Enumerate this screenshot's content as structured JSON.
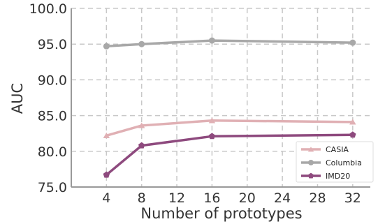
{
  "chart_data": {
    "type": "line",
    "title": "",
    "xlabel": "Number of prototypes",
    "ylabel": "AUC",
    "x": [
      4,
      8,
      16,
      32
    ],
    "xticks": [
      4,
      8,
      12,
      16,
      20,
      24,
      28,
      32
    ],
    "xlim": [
      0,
      34
    ],
    "yticks": [
      "75.0",
      "80.0",
      "85.0",
      "90.0",
      "95.0",
      "100.0"
    ],
    "ylim": [
      75,
      100
    ],
    "grid": true,
    "legend_position": "bottom-right",
    "series": [
      {
        "name": "CASIA",
        "values": [
          82.2,
          83.6,
          84.3,
          84.1
        ],
        "color": "#e0b0b4",
        "marker": "triangle"
      },
      {
        "name": "Columbia",
        "values": [
          94.7,
          95.0,
          95.5,
          95.2
        ],
        "color": "#a8a8a8",
        "marker": "circle"
      },
      {
        "name": "IMD20",
        "values": [
          76.7,
          80.8,
          82.1,
          82.3
        ],
        "color": "#8e4a7e",
        "marker": "pentagon"
      }
    ]
  }
}
